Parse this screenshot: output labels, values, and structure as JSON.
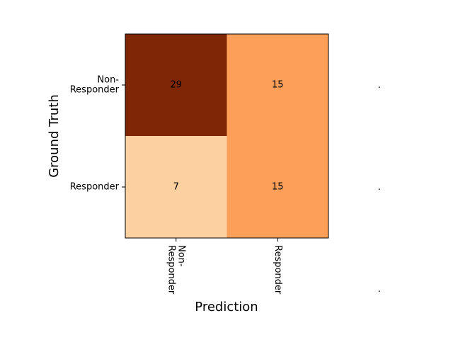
{
  "chart_data": {
    "type": "heatmap",
    "title": "",
    "xlabel": "Prediction",
    "ylabel": "Ground Truth",
    "x_categories": [
      "Non-Responder",
      "Responder"
    ],
    "y_categories": [
      "Non-Responder",
      "Responder"
    ],
    "x_tick_labels": [
      [
        "Non-",
        "Responder"
      ],
      [
        "Responder"
      ]
    ],
    "y_tick_labels": [
      [
        "Non-",
        "Responder"
      ],
      [
        "Responder"
      ]
    ],
    "values": [
      [
        29,
        15
      ],
      [
        7,
        15
      ]
    ],
    "value_range": [
      7,
      29
    ],
    "colormap": "Oranges",
    "colors": {
      "low": "#fdd0a2",
      "mid": "#fd8d3c",
      "high": "#7f2704"
    },
    "grid": false,
    "legend": "none",
    "stray_marks": [
      ".",
      ".",
      "."
    ]
  }
}
